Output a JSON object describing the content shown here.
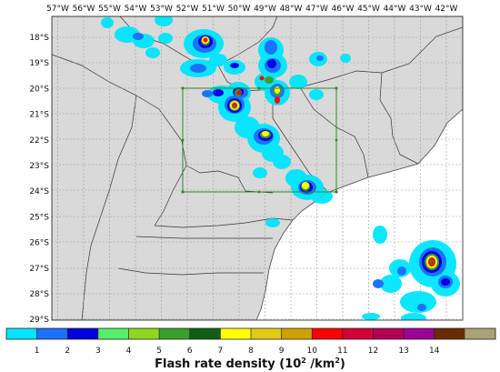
{
  "map": {
    "lon_labels": [
      "57°W",
      "56°W",
      "55°W",
      "54°W",
      "53°W",
      "52°W",
      "51°W",
      "50°W",
      "49°W",
      "48°W",
      "47°W",
      "46°W",
      "45°W",
      "44°W",
      "43°W",
      "42°W"
    ],
    "lat_labels": [
      "18°S",
      "19°S",
      "20°S",
      "21°S",
      "22°S",
      "23°S",
      "24°S",
      "25°S",
      "26°S",
      "27°S",
      "28°S",
      "29°S"
    ],
    "colors": {
      "land": "#d9d9d9",
      "ocean": "#ffffff",
      "grid": "#9a9a9a",
      "border": "#333333",
      "domain_box": "#2e8b22"
    }
  },
  "colorbar": {
    "title": "Flash rate density (10",
    "title_exp": "2",
    "title_unit": " /km",
    "title_unit_exp": "2",
    "title_end": ")",
    "tick_labels": [
      "1",
      "2",
      "3",
      "4",
      "5",
      "6",
      "7",
      "8",
      "9",
      "10",
      "11",
      "12",
      "13",
      "14"
    ],
    "colors": [
      "#00e5ff",
      "#1a73ff",
      "#0000e0",
      "#55f067",
      "#8fd61e",
      "#3aa02c",
      "#0f5e14",
      "#ffff00",
      "#e2cb16",
      "#cfa000",
      "#ff0000",
      "#d10036",
      "#b20055",
      "#9d0094",
      "#6a2c00",
      "#a7a27a"
    ]
  }
}
